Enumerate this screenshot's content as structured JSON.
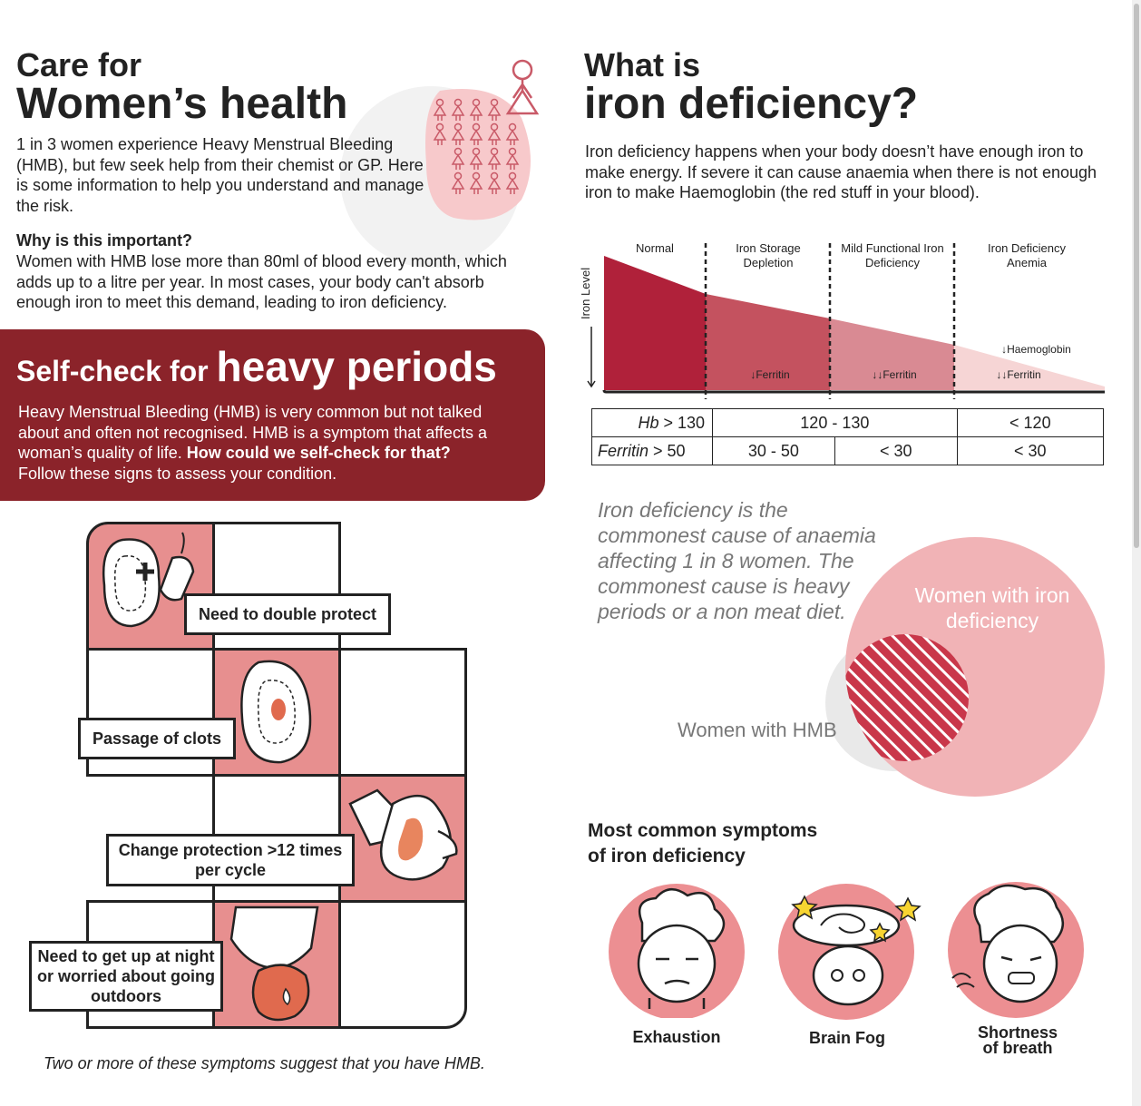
{
  "left": {
    "title_small": "Care for",
    "title_big": "Women’s health",
    "intro": "1 in 3 women experience Heavy Menstrual Bleeding (HMB), but few seek help from their chemist or GP. Here is some information to help you understand and manage the risk.",
    "why_heading": "Why is this important?",
    "why_text": "Women with HMB lose more than 80ml of blood every month, which adds up to a litre per year. In most cases, your body can't absorb enough iron to meet this demand, leading to iron deficiency."
  },
  "banner": {
    "title_part1": "Self-check for ",
    "title_part2": "heavy periods",
    "text": "Heavy Menstrual Bleeding (HMB) is very common but not talked about and often not recognised. HMB is a symptom that affects a woman’s quality of life. ",
    "text_bold": "How could we self-check for that?",
    "text_end": "Follow these signs to assess your condition."
  },
  "checklist": {
    "items": [
      "Need to double protect",
      "Passage of clots",
      "Change protection >12 times per cycle",
      "Need to get up at night or worried about going outdoors"
    ],
    "footnote": "Two or more of these symptoms suggest that you have HMB."
  },
  "right": {
    "title_small": "What is",
    "title_big": "iron deficiency?",
    "intro": "Iron deficiency happens when your body doesn’t have enough iron to make energy. If severe it can cause anaemia when there is not enough iron to make Haemoglobin (the red stuff in your blood)."
  },
  "chart_data": {
    "type": "area",
    "ylabel": "Iron Level",
    "stages": [
      "Normal",
      "Iron Storage Depletion",
      "Mild Functional Iron Deficiency",
      "Iron Deficiency Anemia"
    ],
    "stage_colors": [
      "#b0213a",
      "#c4525f",
      "#d98a93",
      "#f6d5d5"
    ],
    "markers": [
      "↓Ferritin",
      "↓↓Ferritin",
      "↓↓Ferritin",
      "↓Haemoglobin"
    ],
    "table": {
      "hb_label": "Hb",
      "hb_values": [
        "> 130",
        "120 - 130",
        "< 120"
      ],
      "ferritin_label": "Ferritin",
      "ferritin_values": [
        "> 50",
        "30 - 50",
        "< 30",
        "< 30"
      ]
    }
  },
  "venn": {
    "quote": "Iron deficiency is the commonest cause of anaemia affecting 1 in 8 women. The commonest cause is heavy periods or a non meat diet.",
    "big_label": "Women with iron deficiency",
    "small_label": "Women with HMB"
  },
  "symptoms": {
    "title_line1": "Most common symptoms",
    "title_line2": "of iron deficiency",
    "items": [
      {
        "label": "Exhaustion"
      },
      {
        "label": "Brain Fog"
      },
      {
        "label_line1": "Shortness",
        "label_line2": "of breath"
      }
    ]
  },
  "colors": {
    "accent": "#8b232a",
    "pink": "#e78f8f",
    "light_pink": "#f6d5d5",
    "grey": "#777777"
  }
}
